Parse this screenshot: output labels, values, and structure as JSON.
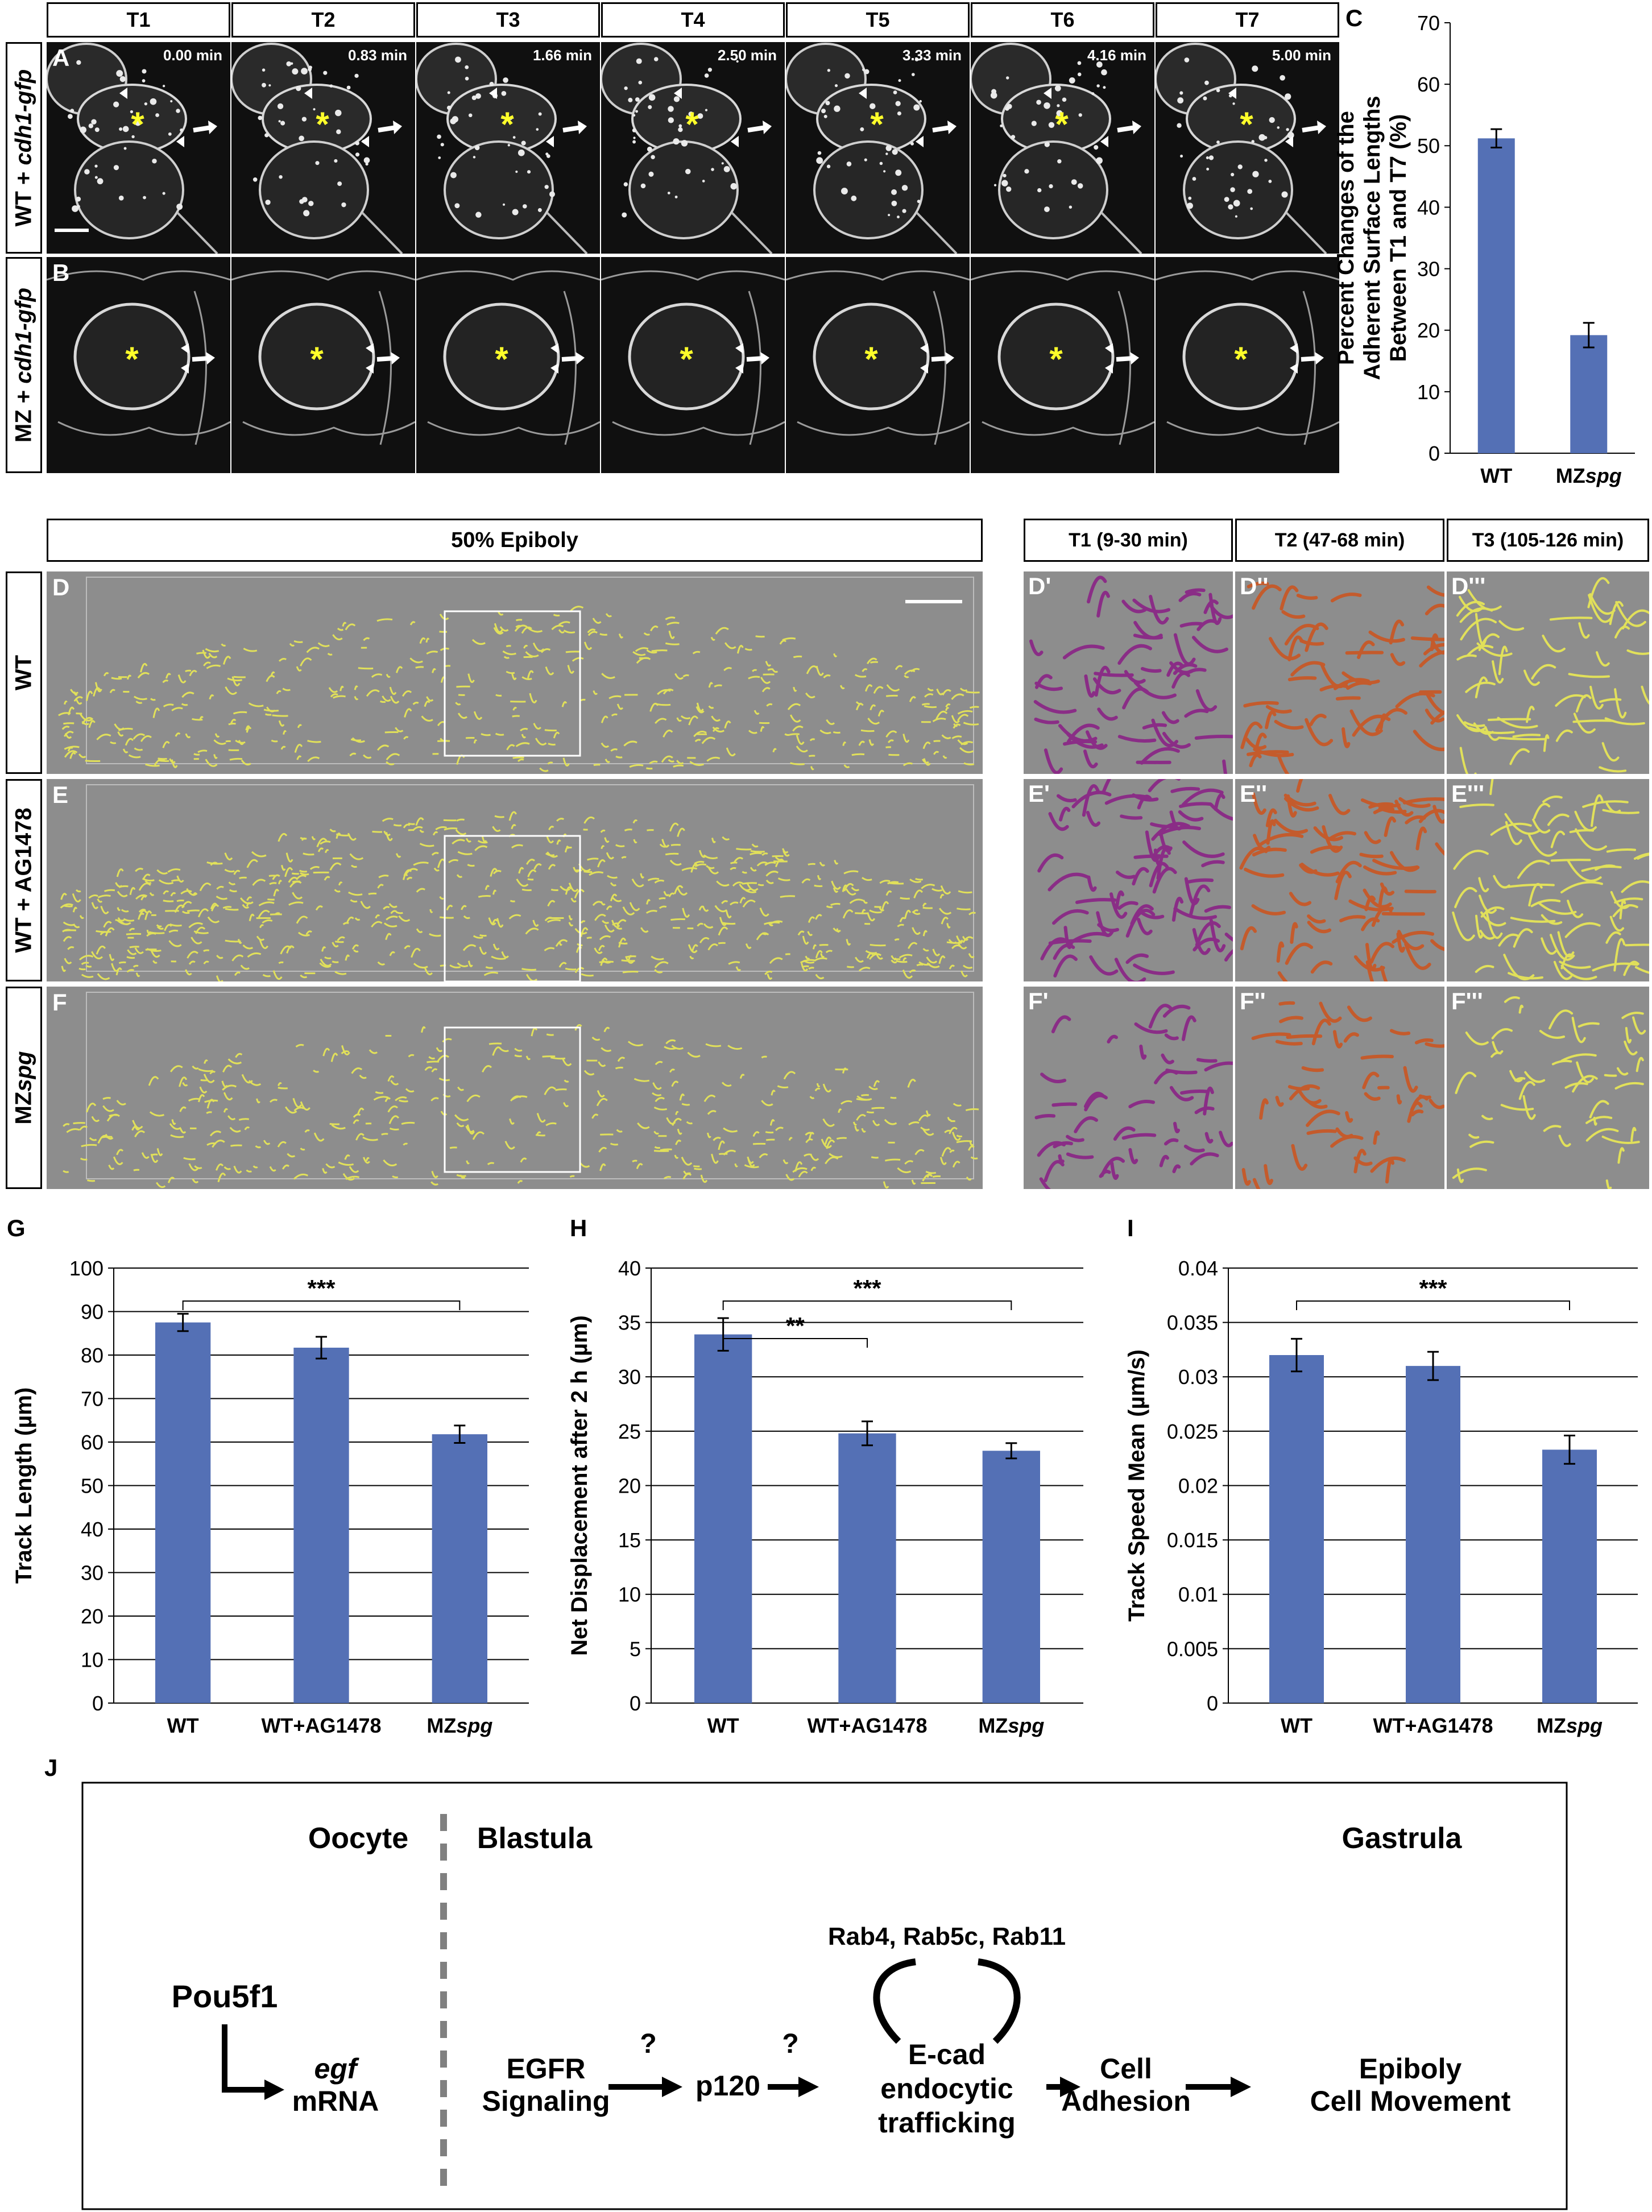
{
  "panel_letters": {
    "A": "A",
    "B": "B",
    "C": "C",
    "D": "D",
    "E": "E",
    "F": "F",
    "G": "G",
    "H": "H",
    "I": "I",
    "J": "J",
    "Dp": "D'",
    "Dpp": "D''",
    "Dppp": "D'''",
    "Ep": "E'",
    "Epp": "E''",
    "Eppp": "E'''",
    "Fp": "F'",
    "Fpp": "F''",
    "Fppp": "F'''"
  },
  "time_headers": [
    "T1",
    "T2",
    "T3",
    "T4",
    "T5",
    "T6",
    "T7"
  ],
  "timestamps": [
    "0.00 min",
    "0.83 min",
    "1.66 min",
    "2.50 min",
    "3.33 min",
    "4.16 min",
    "5.00 min"
  ],
  "row_labels": {
    "A": {
      "pre": "WT + ",
      "gene": "cdh1-gfp"
    },
    "B": {
      "pre": "MZ + ",
      "gene": "cdh1-gfp"
    }
  },
  "epiboly_header": "50% Epiboly",
  "track_headers": [
    "T1 (9-30 min)",
    "T2 (47-68 min)",
    "T3 (105-126 min)"
  ],
  "track_rows": {
    "WT": "WT",
    "WTAG": "WT + AG1478",
    "MZ_pre": "MZ",
    "MZ_ital": "spg"
  },
  "colors": {
    "bar": "#5470b5",
    "yellow_track": "#e1e05a",
    "purple_track": "#8a2d86",
    "orange_track": "#c45b2c",
    "asterisk": "#ffff2a"
  },
  "chart_data": [
    {
      "id": "C",
      "type": "bar",
      "categories": [
        "WT",
        "MZspg"
      ],
      "values": [
        51.2,
        19.2
      ],
      "errors": [
        1.5,
        2.0
      ],
      "ylabel_lines": [
        "Percent Changes of the",
        "Adherent Surface Lengths",
        "Between T1 and T7 (%)"
      ],
      "ylim": [
        0,
        70
      ],
      "yticks": [
        "0",
        "10",
        "20",
        "30",
        "40",
        "50",
        "60",
        "70"
      ],
      "grid": false
    },
    {
      "id": "G",
      "type": "bar",
      "categories": [
        "WT",
        "WT+AG1478",
        "MZspg"
      ],
      "values": [
        87.5,
        81.7,
        61.8
      ],
      "errors": [
        2.0,
        2.5,
        2.0
      ],
      "ylabel": "Track Length (µm)",
      "ylim": [
        0,
        100
      ],
      "yticks": [
        "0",
        "10",
        "20",
        "30",
        "40",
        "50",
        "60",
        "70",
        "80",
        "90",
        "100"
      ],
      "grid": true,
      "sig": [
        {
          "from": 0,
          "to": 2,
          "label": "***"
        }
      ]
    },
    {
      "id": "H",
      "type": "bar",
      "categories": [
        "WT",
        "WT+AG1478",
        "MZspg"
      ],
      "values": [
        33.9,
        24.8,
        23.2
      ],
      "errors": [
        1.5,
        1.1,
        0.7
      ],
      "ylabel": "Net Displacement after 2 h (µm)",
      "ylim": [
        0,
        40
      ],
      "yticks": [
        "0",
        "5",
        "10",
        "15",
        "20",
        "25",
        "30",
        "35",
        "40"
      ],
      "grid": true,
      "sig": [
        {
          "from": 0,
          "to": 1,
          "label": "**"
        },
        {
          "from": 0,
          "to": 2,
          "label": "***"
        }
      ]
    },
    {
      "id": "I",
      "type": "bar",
      "categories": [
        "WT",
        "WT+AG1478",
        "MZspg"
      ],
      "values": [
        0.032,
        0.031,
        0.0233
      ],
      "errors": [
        0.0015,
        0.0013,
        0.0013
      ],
      "ylabel": "Track Speed Mean (µm/s)",
      "ylim": [
        0,
        0.04
      ],
      "yticks": [
        "0",
        "0.005",
        "0.01",
        "0.015",
        "0.02",
        "0.025",
        "0.03",
        "0.035",
        "0.04"
      ],
      "grid": true,
      "sig": [
        {
          "from": 0,
          "to": 2,
          "label": "***"
        }
      ]
    }
  ],
  "category_display": {
    "WT": "WT",
    "WT+AG1478": "WT+AG1478",
    "MZ_pre": "MZ",
    "MZ_ital": "spg"
  },
  "diagram": {
    "oocyte": "Oocyte",
    "blastula": "Blastula",
    "gastrula": "Gastrula",
    "pou5f1": "Pou5f1",
    "egf": "egf",
    "mrna": "mRNA",
    "egfr_1": "EGFR",
    "egfr_2": "Signaling",
    "q": "?",
    "p120": "p120",
    "rabs": "Rab4, Rab5c, Rab11",
    "ecad_1": "E-cad",
    "ecad_2": "endocytic",
    "ecad_3": "trafficking",
    "cell_1": "Cell",
    "cell_2": "Adhesion",
    "epi_1": "Epiboly",
    "epi_2": "Cell Movement"
  }
}
